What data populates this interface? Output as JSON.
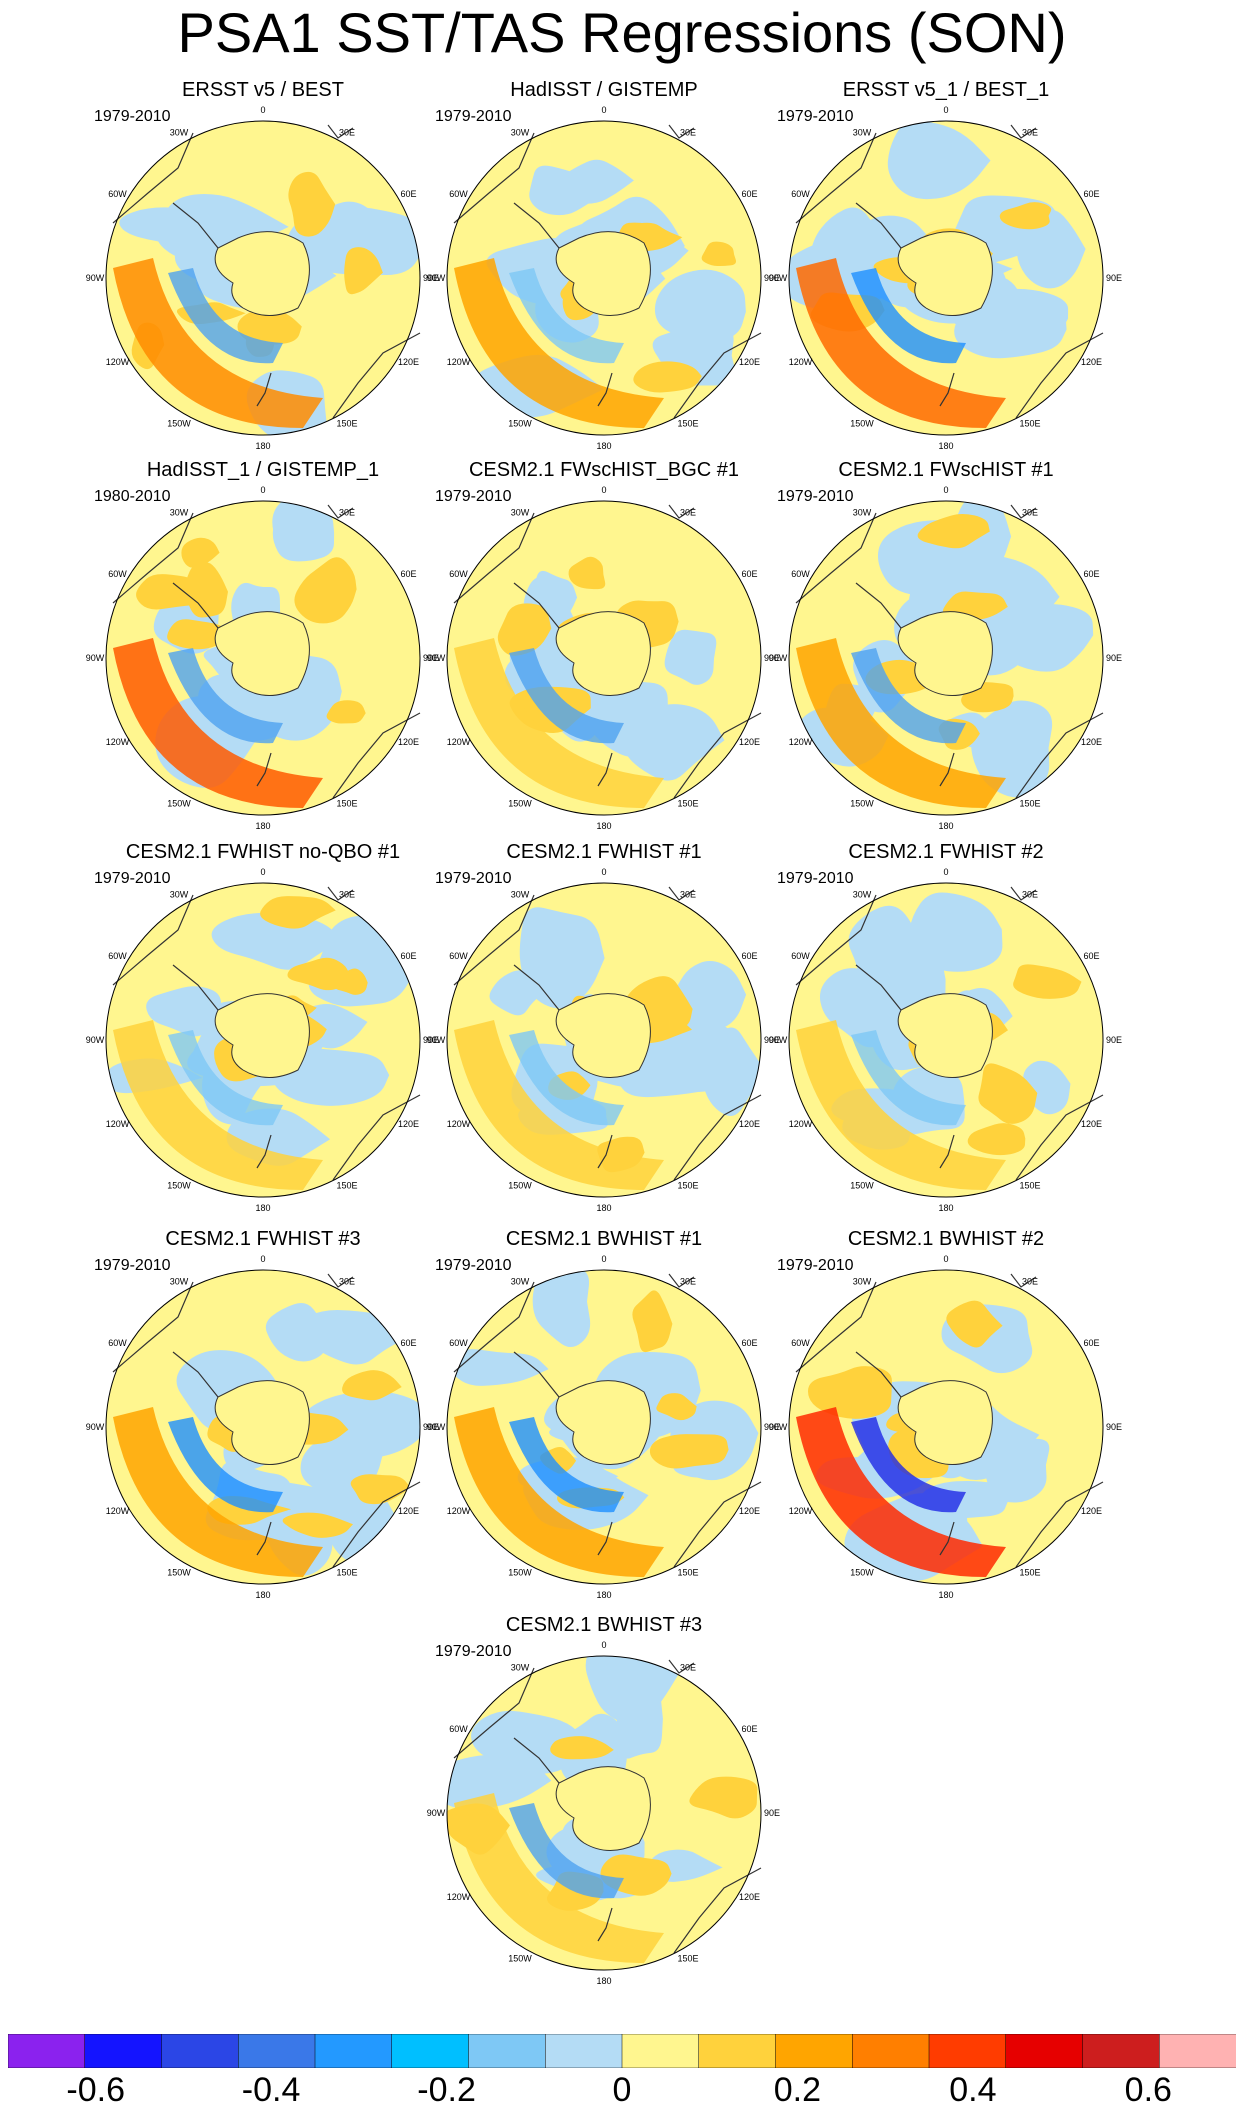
{
  "title": "PSA1 SST/TAS Regressions (SON)",
  "longitude_labels": [
    "0",
    "30E",
    "60E",
    "90E",
    "120E",
    "150E",
    "180",
    "150W",
    "120W",
    "90W",
    "60W",
    "30W"
  ],
  "panels": [
    {
      "title": "ERSST v5 / BEST",
      "period": "1979-2010",
      "warm": "#ff8c00",
      "cool": "#4fa2f0"
    },
    {
      "title": "HadISST / GISTEMP",
      "period": "1979-2010",
      "warm": "#ffa500",
      "cool": "#7ec8f5"
    },
    {
      "title": "ERSST v5_1 / BEST_1",
      "period": "1979-2010",
      "warm": "#ff6a00",
      "cool": "#1e90ff"
    },
    {
      "title": "HadISST_1 / GISTEMP_1",
      "period": "1980-2010",
      "warm": "#ff5a00",
      "cool": "#4fa2f0"
    },
    {
      "title": "CESM2.1 FWscHIST_BGC #1",
      "period": "1979-2010",
      "warm": "#ffd23c",
      "cool": "#4fa2f0"
    },
    {
      "title": "CESM2.1 FWscHIST #1",
      "period": "1979-2010",
      "warm": "#ffa500",
      "cool": "#4fa2f0"
    },
    {
      "title": "CESM2.1 FWHIST no-QBO #1",
      "period": "1979-2010",
      "warm": "#ffd23c",
      "cool": "#7ec8f5"
    },
    {
      "title": "CESM2.1 FWHIST #1",
      "period": "1979-2010",
      "warm": "#ffd23c",
      "cool": "#7ec8f5"
    },
    {
      "title": "CESM2.1 FWHIST #2",
      "period": "1979-2010",
      "warm": "#ffd23c",
      "cool": "#7ec8f5"
    },
    {
      "title": "CESM2.1 FWHIST #3",
      "period": "1979-2010",
      "warm": "#ffa500",
      "cool": "#1e90ff"
    },
    {
      "title": "CESM2.1 BWHIST #1",
      "period": "1979-2010",
      "warm": "#ffa500",
      "cool": "#1e90ff"
    },
    {
      "title": "CESM2.1 BWHIST #2",
      "period": "1979-2010",
      "warm": "#ff2a00",
      "cool": "#1e28e6"
    },
    {
      "title": "CESM2.1 BWHIST #3",
      "period": "1979-2010",
      "warm": "#ffd23c",
      "cool": "#4fa2f0"
    }
  ],
  "colorbar": {
    "colors": [
      "#8b22ee",
      "#1414ff",
      "#2b46e6",
      "#3a78e8",
      "#2399ff",
      "#00bfff",
      "#7ec8f5",
      "#b4dcf5",
      "#fff68f",
      "#ffd23c",
      "#ffa500",
      "#ff7f00",
      "#ff3c00",
      "#e60000",
      "#cd1e1e",
      "#ffb2b2"
    ],
    "labels": [
      "-0.6",
      "-0.4",
      "-0.2",
      "0",
      "0.2",
      "0.4",
      "0.6"
    ],
    "label_values": [
      -0.6,
      -0.4,
      -0.2,
      0,
      0.2,
      0.4,
      0.6
    ],
    "min": -0.7,
    "max": 0.7,
    "step": 0.1
  }
}
